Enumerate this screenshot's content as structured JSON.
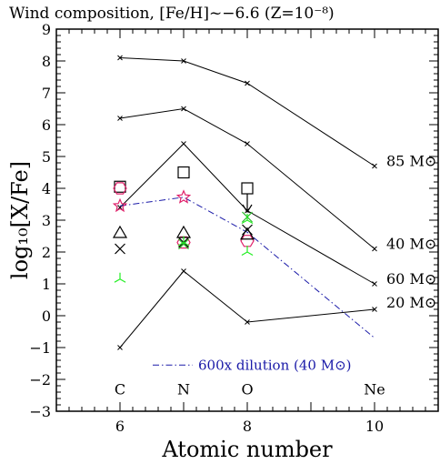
{
  "chart_data": {
    "type": "line",
    "title": "Wind composition, [Fe/H]~−6.6 (Z=10⁻⁸)",
    "xlabel": "Atomic number",
    "ylabel": "log₁₀[X/Fe]",
    "xlim": [
      5,
      11
    ],
    "ylim": [
      -3,
      9
    ],
    "xticks_labeled": [
      6,
      8,
      10
    ],
    "yticks": [
      -3,
      -2,
      -1,
      0,
      1,
      2,
      3,
      4,
      5,
      6,
      7,
      8,
      9
    ],
    "element_labels": [
      {
        "x": 6,
        "text": "C"
      },
      {
        "x": 7,
        "text": "N"
      },
      {
        "x": 8,
        "text": "O"
      },
      {
        "x": 10,
        "text": "Ne"
      }
    ],
    "series": [
      {
        "name": "85 M⊙",
        "color": "#000000",
        "style": "solid-cross",
        "x": [
          6,
          7,
          8,
          10
        ],
        "y": [
          8.1,
          8.0,
          7.3,
          4.7
        ]
      },
      {
        "name": "40 M⊙",
        "color": "#000000",
        "style": "solid-cross",
        "x": [
          6,
          7,
          8,
          10
        ],
        "y": [
          6.2,
          6.5,
          5.4,
          2.1
        ]
      },
      {
        "name": "60 M⊙",
        "color": "#000000",
        "style": "solid-cross",
        "x": [
          6,
          7,
          8,
          10
        ],
        "y": [
          3.4,
          5.4,
          3.3,
          1.0
        ]
      },
      {
        "name": "20 M⊙",
        "color": "#000000",
        "style": "solid-cross",
        "x": [
          6,
          7,
          8,
          10
        ],
        "y": [
          -1.0,
          1.4,
          -0.2,
          0.2
        ]
      },
      {
        "name": "600x dilution (40 M⊙)",
        "color": "#1a1aa8",
        "style": "dashdot-star",
        "x": [
          6,
          7,
          8,
          10
        ],
        "y": [
          3.45,
          3.72,
          2.62,
          -0.7
        ]
      }
    ],
    "series_labels": [
      "85 M⊙",
      "40 M⊙",
      "60 M⊙",
      "20 M⊙"
    ],
    "legend_text": "600x dilution (40 M⊙)",
    "observations": [
      {
        "marker": "square",
        "color": "#000000",
        "x": 6,
        "y": 4.05
      },
      {
        "marker": "square",
        "color": "#000000",
        "x": 7,
        "y": 4.5
      },
      {
        "marker": "square",
        "color": "#000000",
        "x": 8,
        "y": 4.0
      },
      {
        "marker": "arrow-down",
        "color": "#000000",
        "x": 8,
        "y": 4.0
      },
      {
        "marker": "hexagon",
        "color": "#e0206a",
        "x": 6,
        "y": 4.0
      },
      {
        "marker": "hexagon",
        "color": "#e0206a",
        "x": 7,
        "y": 2.3
      },
      {
        "marker": "hexagon",
        "color": "#e0206a",
        "x": 8,
        "y": 2.35
      },
      {
        "marker": "triangle",
        "color": "#000000",
        "x": 6,
        "y": 2.6
      },
      {
        "marker": "triangle",
        "color": "#000000",
        "x": 7,
        "y": 2.6
      },
      {
        "marker": "triangle",
        "color": "#000000",
        "x": 8,
        "y": 2.55
      },
      {
        "marker": "x",
        "color": "#000000",
        "x": 6,
        "y": 2.1
      },
      {
        "marker": "x",
        "color": "#000000",
        "x": 7,
        "y": 2.3
      },
      {
        "marker": "x",
        "color": "#000000",
        "x": 8,
        "y": 2.7
      },
      {
        "marker": "x",
        "color": "#22bb22",
        "x": 7,
        "y": 2.25
      },
      {
        "marker": "x",
        "color": "#22bb22",
        "x": 8,
        "y": 3.1
      },
      {
        "marker": "tri-star",
        "color": "#22ee22",
        "x": 6,
        "y": 1.15
      },
      {
        "marker": "tri-star",
        "color": "#22ee22",
        "x": 7,
        "y": 2.3
      },
      {
        "marker": "tri-star",
        "color": "#22ee22",
        "x": 8,
        "y": 2.0
      },
      {
        "marker": "tri-star",
        "color": "#22ee22",
        "x": 8,
        "y": 3.0
      }
    ]
  }
}
